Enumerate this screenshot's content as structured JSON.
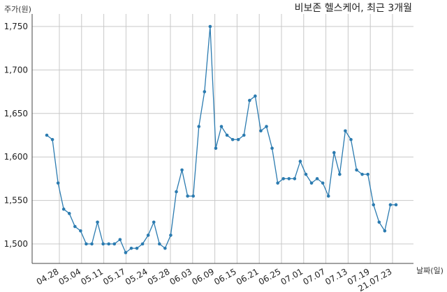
{
  "chart_data": {
    "type": "line",
    "title": "비보존 헬스케어, 최근 3개월",
    "ylabel": "주가(원)",
    "xlabel": "날짜(일)",
    "ylim": [
      1480,
      1760
    ],
    "yticks": [
      1500,
      1550,
      1600,
      1650,
      1700,
      1750
    ],
    "ytick_labels": [
      "1,500",
      "1,550",
      "1,600",
      "1,650",
      "1,700",
      "1,750"
    ],
    "xtick_labels": [
      "04.28",
      "05.04",
      "05.11",
      "05.17",
      "05.24",
      "05.28",
      "06.03",
      "06.09",
      "06.15",
      "06.21",
      "06.25",
      "07.01",
      "07.07",
      "07.13",
      "07.19",
      "21.07.23"
    ],
    "grid": true,
    "colors": {
      "line": "#2b7bb0",
      "grid": "#c8c8c8"
    },
    "series": [
      {
        "values": [
          1625,
          1620,
          1570,
          1540,
          1535,
          1520,
          1515,
          1500,
          1500,
          1525,
          1500,
          1500,
          1500,
          1505,
          1490,
          1495,
          1495,
          1500,
          1510,
          1525,
          1500,
          1495,
          1510,
          1560,
          1585,
          1555,
          1555,
          1635,
          1675,
          1750,
          1610,
          1635,
          1625,
          1620,
          1620,
          1625,
          1665,
          1670,
          1630,
          1635,
          1610,
          1570,
          1575,
          1575,
          1575,
          1595,
          1580,
          1570,
          1575,
          1570,
          1555,
          1605,
          1580,
          1630,
          1620,
          1585,
          1580,
          1580,
          1545,
          1525,
          1515,
          1545,
          1545
        ]
      }
    ]
  }
}
